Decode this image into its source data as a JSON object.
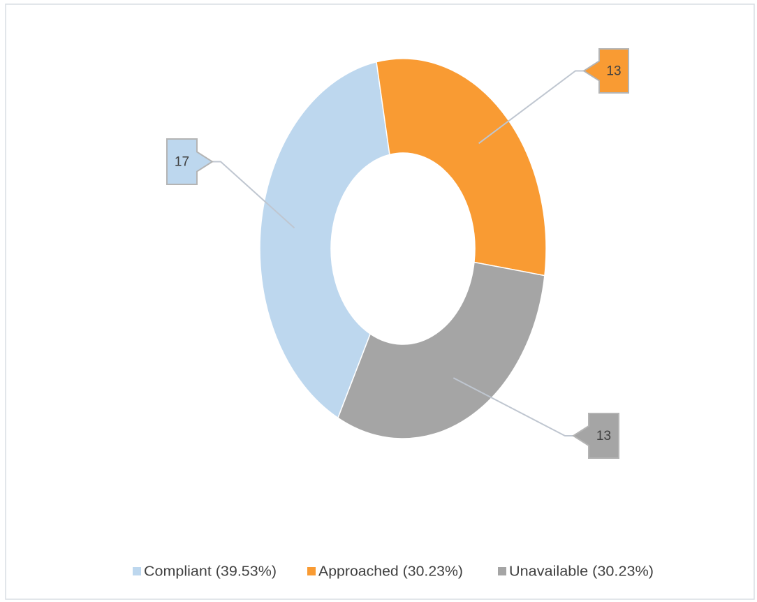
{
  "chart_data": {
    "type": "donut",
    "categories": [
      "Compliant (39.53%)",
      "Approached (30.23%)",
      "Unavailable (30.23%)"
    ],
    "values": [
      17,
      13,
      13
    ],
    "colors": [
      "#bdd7ee",
      "#f99b33",
      "#a5a5a5"
    ],
    "legend": "bottom"
  }
}
